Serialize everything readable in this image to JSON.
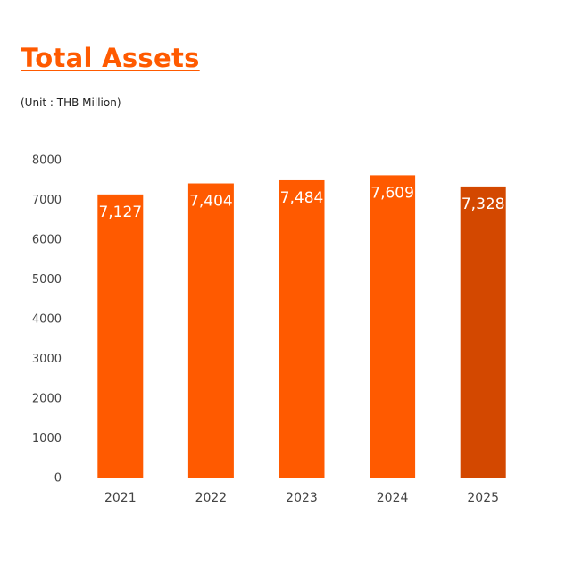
{
  "header": {
    "title": "Total Assets",
    "subtitle": "(Unit : THB Million)"
  },
  "colors": {
    "bar": "#ff5a00",
    "bar_highlight": "#d34800",
    "title": "#ff5a00",
    "axis_text": "#444444"
  },
  "chart_data": {
    "type": "bar",
    "title": "Total Assets",
    "subtitle": "(Unit : THB Million)",
    "categories": [
      "2021",
      "2022",
      "2023",
      "2024",
      "2025"
    ],
    "values": [
      7127,
      7404,
      7484,
      7609,
      7328
    ],
    "data_labels": [
      "7,127",
      "7,404",
      "7,484",
      "7,609",
      "7,328"
    ],
    "highlight_index": 4,
    "ylim": [
      0,
      8000
    ],
    "yticks": [
      0,
      1000,
      2000,
      3000,
      4000,
      5000,
      6000,
      7000,
      8000
    ],
    "grid": false,
    "legend": "none",
    "xlabel": "",
    "ylabel": ""
  }
}
